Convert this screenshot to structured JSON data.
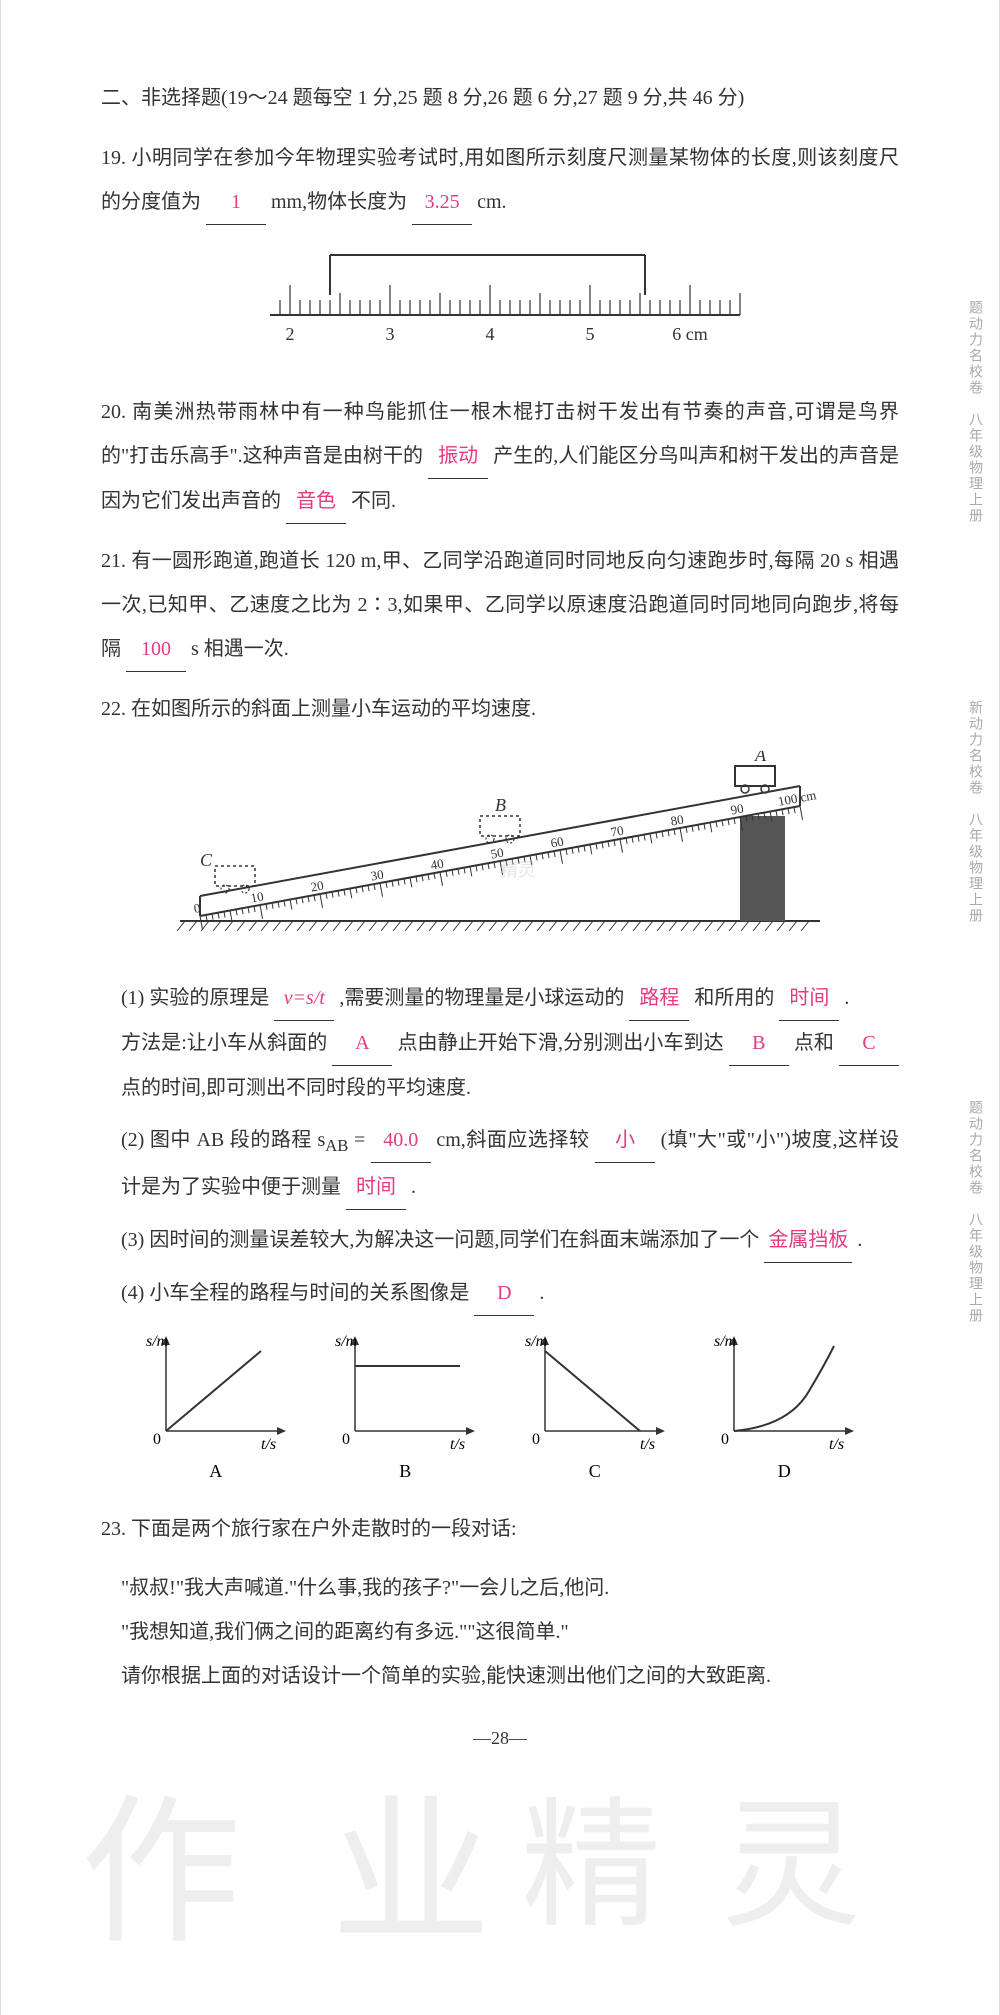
{
  "section_header": "二、非选择题(19～24 题每空 1 分,25 题 8 分,26 题 6 分,27 题 9 分,共 46 分)",
  "q19": {
    "num": "19.",
    "text_a": "小明同学在参加今年物理实验考试时,用如图所示刻度尺测量某物体的长度,则该刻度尺的分度值为",
    "ans_a": "1",
    "text_b": "mm,物体长度为",
    "ans_b": "3.25",
    "text_c": "cm."
  },
  "ruler": {
    "ticks": [
      "2",
      "3",
      "4",
      "5",
      "6 cm"
    ],
    "stroke": "#333333"
  },
  "q20": {
    "num": "20.",
    "text_a": "南美洲热带雨林中有一种鸟能抓住一根木棍打击树干发出有节奏的声音,可谓是鸟界的\"打击乐高手\".这种声音是由树干的",
    "ans_a": "振动",
    "text_b": "产生的,人们能区分鸟叫声和树干发出的声音是因为它们发出声音的",
    "ans_b": "音色",
    "text_c": "不同."
  },
  "q21": {
    "num": "21.",
    "text_a": "有一圆形跑道,跑道长 120 m,甲、乙同学沿跑道同时同地反向匀速跑步时,每隔 20 s 相遇一次,已知甲、乙速度之比为 2∶3,如果甲、乙同学以原速度沿跑道同时同地同向跑步,将每隔",
    "ans_a": "100",
    "text_b": "s 相遇一次."
  },
  "q22": {
    "num": "22.",
    "intro": "在如图所示的斜面上测量小车运动的平均速度.",
    "ramp_labels": [
      "A",
      "B",
      "C"
    ],
    "ramp_ticks": [
      "0",
      "10",
      "20",
      "30",
      "40",
      "50",
      "60",
      "70",
      "80",
      "90",
      "100 cm"
    ],
    "sub1": {
      "label": "(1)",
      "text_a": "实验的原理是",
      "ans_a": "v=s/t",
      "text_b": ",需要测量的物理量是小球运动的",
      "ans_b": "路程",
      "text_c": "和所用的",
      "ans_c": "时间",
      "text_d": ".",
      "method_a": "方法是:让小车从斜面的",
      "ans_d": "A",
      "method_b": "点由静止开始下滑,分别测出小车到达",
      "ans_e": "B",
      "method_c": "点和",
      "ans_f": "C",
      "method_d": "点的时间,即可测出不同时段的平均速度."
    },
    "sub2": {
      "label": "(2)",
      "text_a": "图中 AB 段的路程 s",
      "sub_ab": "AB",
      "text_b": " = ",
      "ans_a": "40.0",
      "text_c": " cm,斜面应选择较",
      "ans_b": "小",
      "text_d": "(填\"大\"或\"小\")坡度,这样设计是为了实验中便于测量",
      "ans_c": "时间",
      "text_e": "."
    },
    "sub3": {
      "label": "(3)",
      "text_a": "因时间的测量误差较大,为解决这一问题,同学们在斜面末端添加了一个",
      "ans_a": "金属挡板",
      "text_b": "."
    },
    "sub4": {
      "label": "(4)",
      "text_a": "小车全程的路程与时间的关系图像是",
      "ans_a": "D",
      "text_b": "."
    },
    "graphs": {
      "y_label": "s/m",
      "x_label": "t/s",
      "labels": [
        "A",
        "B",
        "C",
        "D"
      ],
      "stroke": "#333333"
    }
  },
  "q23": {
    "num": "23.",
    "intro": "下面是两个旅行家在户外走散时的一段对话:",
    "line1": "\"叔叔!\"我大声喊道.\"什么事,我的孩子?\"一会儿之后,他问.",
    "line2": "\"我想知道,我们俩之间的距离约有多远.\"\"这很简单.\"",
    "task": "请你根据上面的对话设计一个简单的实验,能快速测出他们之间的大致距离."
  },
  "page_num": "—28—",
  "side_labels": {
    "s1": "题动力名校卷　八年级物理上册",
    "s2": "新动力名校卷　八年级物理上册",
    "s3": "题动力名校卷　八年级物理上册"
  },
  "watermarks": {
    "jl": "精灵",
    "zuo": "作",
    "ye": "业",
    "jing": "精",
    "ling": "灵"
  }
}
